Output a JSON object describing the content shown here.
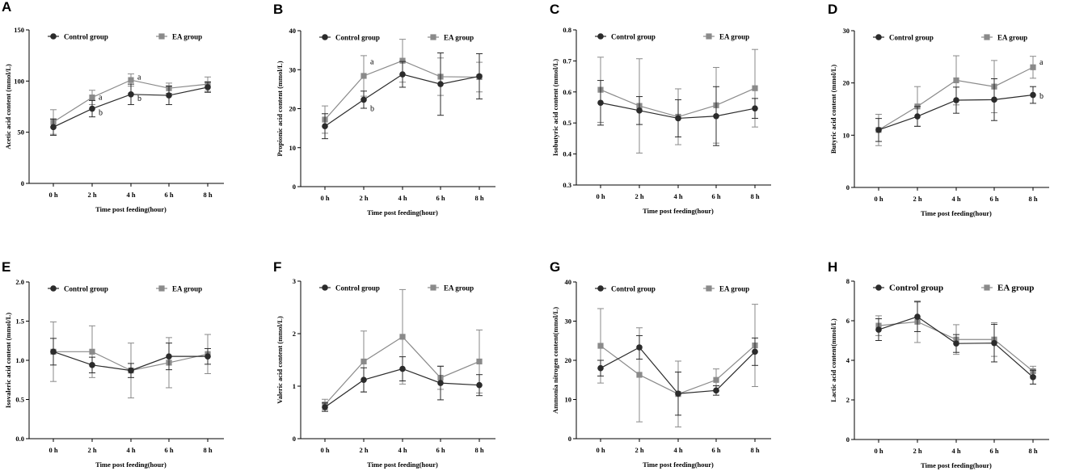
{
  "chart_data": [
    {
      "panel": "A",
      "type": "line",
      "ylabel": "Acetic acid content   (mmol/L)",
      "xlabel": "Time post feeding(hour)",
      "categories": [
        "0 h",
        "2 h",
        "4 h",
        "6 h",
        "8 h"
      ],
      "ylim": [
        0,
        150
      ],
      "yticks": [
        0,
        50,
        100,
        150
      ],
      "series": [
        {
          "name": "Control group",
          "color": "#2b2b2b",
          "marker": "circle",
          "values": [
            55,
            73,
            87,
            86,
            94
          ],
          "errors": [
            8,
            8,
            10,
            9,
            5
          ]
        },
        {
          "name": "EA group",
          "color": "#8a8a8a",
          "marker": "square",
          "values": [
            60,
            84,
            101,
            93,
            97
          ],
          "errors": [
            12,
            7,
            6,
            5,
            7
          ]
        }
      ],
      "annotations": [
        {
          "text": "a",
          "x": "2 h",
          "y": 84
        },
        {
          "text": "b",
          "x": "2 h",
          "y": 69
        },
        {
          "text": "a",
          "x": "4 h",
          "y": 104
        },
        {
          "text": "b",
          "x": "4 h",
          "y": 83
        }
      ],
      "legend_size": "normal"
    },
    {
      "panel": "B",
      "type": "line",
      "ylabel": "Propionic acid content (mmol/L)",
      "xlabel": "Time post feeding(hour)",
      "categories": [
        "0 h",
        "2 h",
        "4 h",
        "6 h",
        "8 h"
      ],
      "ylim": [
        0,
        40
      ],
      "yticks": [
        0,
        10,
        20,
        30,
        40
      ],
      "series": [
        {
          "name": "Control group",
          "color": "#2b2b2b",
          "marker": "circle",
          "values": [
            15.5,
            22.3,
            28.8,
            26.3,
            28.3
          ],
          "errors": [
            3.2,
            2.2,
            3.3,
            8,
            5.8
          ]
        },
        {
          "name": "EA group",
          "color": "#8a8a8a",
          "marker": "square",
          "values": [
            17.2,
            28.4,
            32.3,
            28.2,
            28.1
          ],
          "errors": [
            3.5,
            5.2,
            5.5,
            4.8,
            3.8
          ]
        }
      ],
      "annotations": [
        {
          "text": "a",
          "x": "2 h",
          "y": 32
        },
        {
          "text": "b",
          "x": "2 h",
          "y": 20
        }
      ],
      "legend_size": "normal"
    },
    {
      "panel": "C",
      "type": "line",
      "ylabel": "Isobutyric acid content  (mmol/L)",
      "xlabel": "Time post feeding(hour)",
      "categories": [
        "0 h",
        "2 h",
        "4 h",
        "6 h",
        "8 h"
      ],
      "ylim": [
        0.3,
        0.8
      ],
      "yticks": [
        0.3,
        0.4,
        0.5,
        0.6,
        0.7,
        0.8
      ],
      "series": [
        {
          "name": "Control group",
          "color": "#2b2b2b",
          "marker": "circle",
          "values": [
            0.565,
            0.54,
            0.515,
            0.522,
            0.547
          ],
          "errors": [
            0.072,
            0.045,
            0.06,
            0.095,
            0.032
          ]
        },
        {
          "name": "EA group",
          "color": "#8a8a8a",
          "marker": "square",
          "values": [
            0.607,
            0.555,
            0.52,
            0.557,
            0.612
          ],
          "errors": [
            0.105,
            0.152,
            0.09,
            0.122,
            0.125
          ]
        }
      ],
      "annotations": [],
      "legend_size": "normal"
    },
    {
      "panel": "D",
      "type": "line",
      "ylabel": "Butyric acid content   (mmol/L)",
      "xlabel": "Time post feeding(hour)",
      "categories": [
        "0 h",
        "2 h",
        "4 h",
        "6 h",
        "8 h"
      ],
      "ylim": [
        0,
        30
      ],
      "yticks": [
        0,
        10,
        20,
        30
      ],
      "series": [
        {
          "name": "Control group",
          "color": "#2b2b2b",
          "marker": "circle",
          "values": [
            11,
            13.6,
            16.7,
            16.8,
            17.7
          ],
          "errors": [
            2.2,
            1.9,
            2.5,
            4,
            1.6
          ]
        },
        {
          "name": "EA group",
          "color": "#8a8a8a",
          "marker": "square",
          "values": [
            11,
            15.5,
            20.5,
            19.3,
            23
          ],
          "errors": [
            3,
            3.8,
            4.7,
            5,
            2.1
          ]
        }
      ],
      "annotations": [
        {
          "text": "a",
          "x": "8 h",
          "y": 24
        },
        {
          "text": "b",
          "x": "8 h",
          "y": 17.5
        }
      ],
      "legend_size": "normal"
    },
    {
      "panel": "E",
      "type": "line",
      "ylabel": "Isovaleric acid content (mmol/L)",
      "xlabel": "Time post feeding(hour)",
      "categories": [
        "0 h",
        "2 h",
        "4 h",
        "6 h",
        "8 h"
      ],
      "ylim": [
        0,
        2.0
      ],
      "yticks": [
        0.0,
        0.5,
        1.0,
        1.5,
        2.0
      ],
      "series": [
        {
          "name": "Control group",
          "color": "#2b2b2b",
          "marker": "circle",
          "values": [
            1.11,
            0.94,
            0.87,
            1.05,
            1.05
          ],
          "errors": [
            0.17,
            0.1,
            0.09,
            0.17,
            0.1
          ]
        },
        {
          "name": "EA group",
          "color": "#8a8a8a",
          "marker": "square",
          "values": [
            1.11,
            1.11,
            0.87,
            0.97,
            1.08
          ],
          "errors": [
            0.38,
            0.33,
            0.35,
            0.32,
            0.25
          ]
        }
      ],
      "annotations": [],
      "legend_size": "normal"
    },
    {
      "panel": "F",
      "type": "line",
      "ylabel": "Valeric acid content (mmol/L)",
      "xlabel": "Time post feeding(hour)",
      "categories": [
        "0 h",
        "2 h",
        "4 h",
        "6 h",
        "8 h"
      ],
      "ylim": [
        0,
        3
      ],
      "yticks": [
        0,
        1,
        2,
        3
      ],
      "series": [
        {
          "name": "Control group",
          "color": "#2b2b2b",
          "marker": "circle",
          "values": [
            0.6,
            1.12,
            1.33,
            1.06,
            1.02
          ],
          "errors": [
            0.08,
            0.23,
            0.23,
            0.32,
            0.2
          ]
        },
        {
          "name": "EA group",
          "color": "#8a8a8a",
          "marker": "square",
          "values": [
            0.65,
            1.47,
            1.94,
            1.16,
            1.47
          ],
          "errors": [
            0.1,
            0.58,
            0.9,
            0.22,
            0.6
          ]
        }
      ],
      "annotations": [],
      "legend_size": "normal"
    },
    {
      "panel": "G",
      "type": "line",
      "ylabel": "Ammonia nitrogen content(mmol/L)",
      "xlabel": "Time post feeding(hour)",
      "categories": [
        "0 h",
        "2 h",
        "4 h",
        "6 h",
        "8 h"
      ],
      "ylim": [
        0,
        40
      ],
      "yticks": [
        0,
        10,
        20,
        30,
        40
      ],
      "series": [
        {
          "name": "Control group",
          "color": "#2b2b2b",
          "marker": "circle",
          "values": [
            18,
            23.3,
            11.5,
            12.3,
            22.2
          ],
          "errors": [
            2,
            3,
            5.5,
            1.2,
            3.5
          ]
        },
        {
          "name": "EA group",
          "color": "#8a8a8a",
          "marker": "square",
          "values": [
            23.7,
            16.3,
            11.4,
            15,
            23.8
          ],
          "errors": [
            9.5,
            12,
            8.4,
            2.8,
            10.5
          ]
        }
      ],
      "annotations": [],
      "legend_size": "normal"
    },
    {
      "panel": "H",
      "type": "line",
      "ylabel": "Lactic acid content(mmol/L)",
      "xlabel": "Time post feeding(hour)",
      "categories": [
        "0 h",
        "2 h",
        "4 h",
        "6 h",
        "8 h"
      ],
      "ylim": [
        0,
        8
      ],
      "yticks": [
        0,
        2,
        4,
        6,
        8
      ],
      "series": [
        {
          "name": "Control group",
          "color": "#2b2b2b",
          "marker": "circle",
          "values": [
            5.55,
            6.2,
            4.85,
            4.87,
            3.15
          ],
          "errors": [
            0.55,
            0.75,
            0.45,
            0.95,
            0.35
          ]
        },
        {
          "name": "EA group",
          "color": "#8a8a8a",
          "marker": "square",
          "values": [
            5.75,
            5.95,
            5.05,
            5.05,
            3.45
          ],
          "errors": [
            0.5,
            1.05,
            0.75,
            0.85,
            0.25
          ]
        }
      ],
      "annotations": [],
      "legend_size": "big"
    }
  ]
}
